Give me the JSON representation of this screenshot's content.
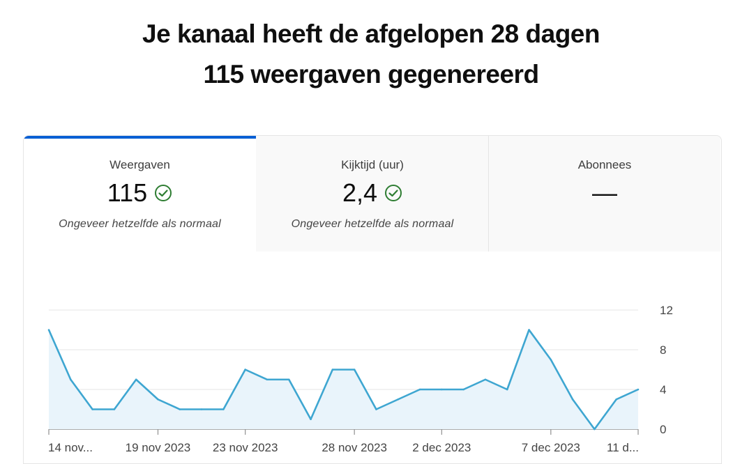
{
  "headline": {
    "line1": "Je kanaal heeft de afgelopen 28 dagen",
    "line2": "115 weergaven gegenereerd"
  },
  "tabs": [
    {
      "label": "Weergaven",
      "value": "115",
      "note": "Ongeveer hetzelfde als normaal",
      "icon": "check-circle-icon",
      "selected": true
    },
    {
      "label": "Kijktijd (uur)",
      "value": "2,4",
      "note": "Ongeveer hetzelfde als normaal",
      "icon": "check-circle-icon",
      "selected": false
    },
    {
      "label": "Abonnees",
      "value": "—",
      "note": "",
      "icon": "",
      "selected": false
    }
  ],
  "colors": {
    "accent": "#065fd4",
    "line": "#3ea6d1",
    "area": "#e9f4fb",
    "check": "#2e7d32"
  },
  "chart_data": {
    "type": "area",
    "x": [
      "14 nov",
      "15 nov",
      "16 nov",
      "17 nov",
      "18 nov",
      "19 nov",
      "20 nov",
      "21 nov",
      "22 nov",
      "23 nov",
      "24 nov",
      "25 nov",
      "26 nov",
      "27 nov",
      "28 nov",
      "29 nov",
      "30 nov",
      "1 dec",
      "2 dec",
      "3 dec",
      "4 dec",
      "5 dec",
      "6 dec",
      "7 dec",
      "8 dec",
      "9 dec",
      "10 dec",
      "11 dec"
    ],
    "series": [
      {
        "values": [
          10,
          5,
          2,
          2,
          5,
          3,
          2,
          2,
          2,
          6,
          5,
          5,
          1,
          6,
          6,
          2,
          3,
          4,
          4,
          4,
          5,
          4,
          10,
          7,
          3,
          0,
          3,
          4
        ]
      }
    ],
    "tick_labels": [
      {
        "index": 0,
        "text": "14 nov..."
      },
      {
        "index": 5,
        "text": "19 nov 2023"
      },
      {
        "index": 9,
        "text": "23 nov 2023"
      },
      {
        "index": 14,
        "text": "28 nov 2023"
      },
      {
        "index": 18,
        "text": "2 dec 2023"
      },
      {
        "index": 23,
        "text": "7 dec 2023"
      },
      {
        "index": 27,
        "text": "11 d..."
      }
    ],
    "y_ticks": [
      0,
      4,
      8,
      12
    ],
    "ylim": [
      0,
      12
    ],
    "grid": true,
    "y_axis_side": "right"
  }
}
